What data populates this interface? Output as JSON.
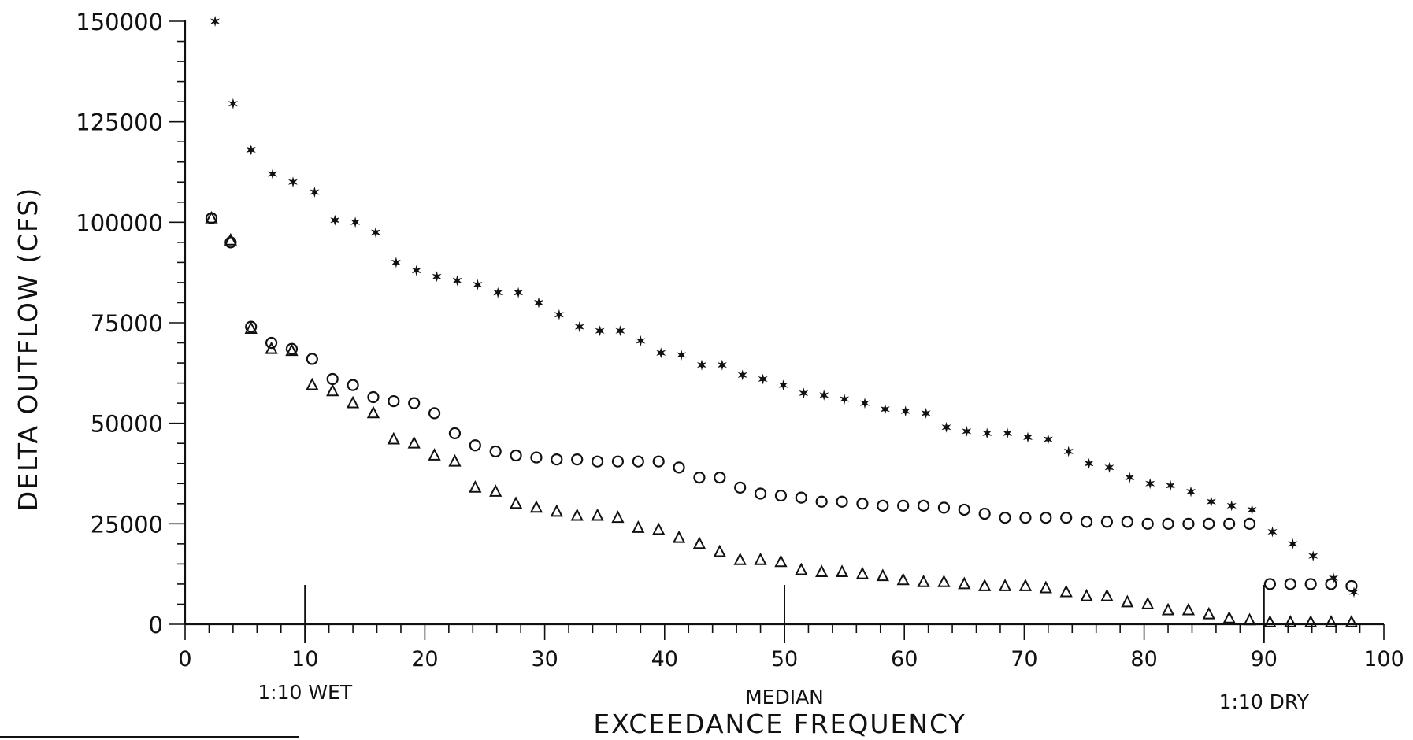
{
  "chart_data": {
    "type": "scatter",
    "title": "",
    "xlabel": "EXCEEDANCE FREQUENCY",
    "ylabel": "DELTA OUTFLOW (CFS)",
    "xlim": [
      0,
      100
    ],
    "ylim": [
      0,
      150000
    ],
    "x_ticks": [
      0,
      10,
      20,
      30,
      40,
      50,
      60,
      70,
      80,
      90,
      100
    ],
    "y_ticks": [
      0,
      25000,
      50000,
      75000,
      100000,
      125000,
      150000
    ],
    "x_tick_labels": [
      "0",
      "10",
      "20",
      "30",
      "40",
      "50",
      "60",
      "70",
      "80",
      "90",
      "100"
    ],
    "y_tick_labels": [
      "0",
      "25000",
      "50000",
      "75000",
      "100000",
      "125000",
      "150000"
    ],
    "grid": false,
    "legend": "none",
    "annotations": [
      {
        "text": "1:10 WET",
        "x": 10
      },
      {
        "text": "MEDIAN",
        "x": 50
      },
      {
        "text": "1:10 DRY",
        "x": 90
      }
    ],
    "series": [
      {
        "marker": "star",
        "points": [
          [
            2.5,
            150000
          ],
          [
            4,
            129500
          ],
          [
            5.5,
            118000
          ],
          [
            7.3,
            112000
          ],
          [
            9,
            110000
          ],
          [
            10.8,
            107500
          ],
          [
            12.5,
            100500
          ],
          [
            14.2,
            100000
          ],
          [
            15.9,
            97500
          ],
          [
            17.6,
            90000
          ],
          [
            19.3,
            88000
          ],
          [
            21,
            86500
          ],
          [
            22.7,
            85500
          ],
          [
            24.4,
            84500
          ],
          [
            26.1,
            82500
          ],
          [
            27.8,
            82500
          ],
          [
            29.5,
            80000
          ],
          [
            31.2,
            77000
          ],
          [
            32.9,
            74000
          ],
          [
            34.6,
            73000
          ],
          [
            36.3,
            73000
          ],
          [
            38,
            70500
          ],
          [
            39.7,
            67500
          ],
          [
            41.4,
            67000
          ],
          [
            43.1,
            64500
          ],
          [
            44.8,
            64500
          ],
          [
            46.5,
            62000
          ],
          [
            48.2,
            61000
          ],
          [
            49.9,
            59500
          ],
          [
            51.6,
            57500
          ],
          [
            53.3,
            57000
          ],
          [
            55,
            56000
          ],
          [
            56.7,
            55000
          ],
          [
            58.4,
            53500
          ],
          [
            60.1,
            53000
          ],
          [
            61.8,
            52500
          ],
          [
            63.5,
            49000
          ],
          [
            65.2,
            48000
          ],
          [
            66.9,
            47500
          ],
          [
            68.6,
            47500
          ],
          [
            70.3,
            46500
          ],
          [
            72,
            46000
          ],
          [
            73.7,
            43000
          ],
          [
            75.4,
            40000
          ],
          [
            77.1,
            39000
          ],
          [
            78.8,
            36500
          ],
          [
            80.5,
            35000
          ],
          [
            82.2,
            34500
          ],
          [
            83.9,
            33000
          ],
          [
            85.6,
            30500
          ],
          [
            87.3,
            29500
          ],
          [
            89,
            28500
          ],
          [
            90.7,
            23000
          ],
          [
            92.4,
            20000
          ],
          [
            94.1,
            17000
          ],
          [
            95.8,
            11500
          ],
          [
            97.5,
            8000
          ]
        ]
      },
      {
        "marker": "circle",
        "points": [
          [
            2.2,
            101000
          ],
          [
            3.8,
            95000
          ],
          [
            5.5,
            74000
          ],
          [
            7.2,
            70000
          ],
          [
            8.9,
            68500
          ],
          [
            10.6,
            66000
          ],
          [
            12.3,
            61000
          ],
          [
            14,
            59500
          ],
          [
            15.7,
            56500
          ],
          [
            17.4,
            55500
          ],
          [
            19.1,
            55000
          ],
          [
            20.8,
            52500
          ],
          [
            22.5,
            47500
          ],
          [
            24.2,
            44500
          ],
          [
            25.9,
            43000
          ],
          [
            27.6,
            42000
          ],
          [
            29.3,
            41500
          ],
          [
            31,
            41000
          ],
          [
            32.7,
            41000
          ],
          [
            34.4,
            40500
          ],
          [
            36.1,
            40500
          ],
          [
            37.8,
            40500
          ],
          [
            39.5,
            40500
          ],
          [
            41.2,
            39000
          ],
          [
            42.9,
            36500
          ],
          [
            44.6,
            36500
          ],
          [
            46.3,
            34000
          ],
          [
            48,
            32500
          ],
          [
            49.7,
            32000
          ],
          [
            51.4,
            31500
          ],
          [
            53.1,
            30500
          ],
          [
            54.8,
            30500
          ],
          [
            56.5,
            30000
          ],
          [
            58.2,
            29500
          ],
          [
            59.9,
            29500
          ],
          [
            61.6,
            29500
          ],
          [
            63.3,
            29000
          ],
          [
            65,
            28500
          ],
          [
            66.7,
            27500
          ],
          [
            68.4,
            26500
          ],
          [
            70.1,
            26500
          ],
          [
            71.8,
            26500
          ],
          [
            73.5,
            26500
          ],
          [
            75.2,
            25500
          ],
          [
            76.9,
            25500
          ],
          [
            78.6,
            25500
          ],
          [
            80.3,
            25000
          ],
          [
            82,
            25000
          ],
          [
            83.7,
            25000
          ],
          [
            85.4,
            25000
          ],
          [
            87.1,
            25000
          ],
          [
            88.8,
            25000
          ],
          [
            90.5,
            10000
          ],
          [
            92.2,
            10000
          ],
          [
            93.9,
            10000
          ],
          [
            95.6,
            10000
          ],
          [
            97.3,
            9500
          ]
        ]
      },
      {
        "marker": "triangle",
        "points": [
          [
            2.2,
            101000
          ],
          [
            3.8,
            95500
          ],
          [
            5.5,
            73500
          ],
          [
            7.2,
            68500
          ],
          [
            8.9,
            68000
          ],
          [
            10.6,
            59500
          ],
          [
            12.3,
            58000
          ],
          [
            14,
            55000
          ],
          [
            15.7,
            52500
          ],
          [
            17.4,
            46000
          ],
          [
            19.1,
            45000
          ],
          [
            20.8,
            42000
          ],
          [
            22.5,
            40500
          ],
          [
            24.2,
            34000
          ],
          [
            25.9,
            33000
          ],
          [
            27.6,
            30000
          ],
          [
            29.3,
            29000
          ],
          [
            31,
            28000
          ],
          [
            32.7,
            27000
          ],
          [
            34.4,
            27000
          ],
          [
            36.1,
            26500
          ],
          [
            37.8,
            24000
          ],
          [
            39.5,
            23500
          ],
          [
            41.2,
            21500
          ],
          [
            42.9,
            20000
          ],
          [
            44.6,
            18000
          ],
          [
            46.3,
            16000
          ],
          [
            48,
            16000
          ],
          [
            49.7,
            15500
          ],
          [
            51.4,
            13500
          ],
          [
            53.1,
            13000
          ],
          [
            54.8,
            13000
          ],
          [
            56.5,
            12500
          ],
          [
            58.2,
            12000
          ],
          [
            59.9,
            11000
          ],
          [
            61.6,
            10500
          ],
          [
            63.3,
            10500
          ],
          [
            65,
            10000
          ],
          [
            66.7,
            9500
          ],
          [
            68.4,
            9500
          ],
          [
            70.1,
            9500
          ],
          [
            71.8,
            9000
          ],
          [
            73.5,
            8000
          ],
          [
            75.2,
            7000
          ],
          [
            76.9,
            7000
          ],
          [
            78.6,
            5500
          ],
          [
            80.3,
            5000
          ],
          [
            82,
            3500
          ],
          [
            83.7,
            3500
          ],
          [
            85.4,
            2500
          ],
          [
            87.1,
            1500
          ],
          [
            88.8,
            1000
          ],
          [
            90.5,
            500
          ],
          [
            92.2,
            500
          ],
          [
            93.9,
            500
          ],
          [
            95.6,
            500
          ],
          [
            97.3,
            500
          ]
        ]
      }
    ]
  }
}
